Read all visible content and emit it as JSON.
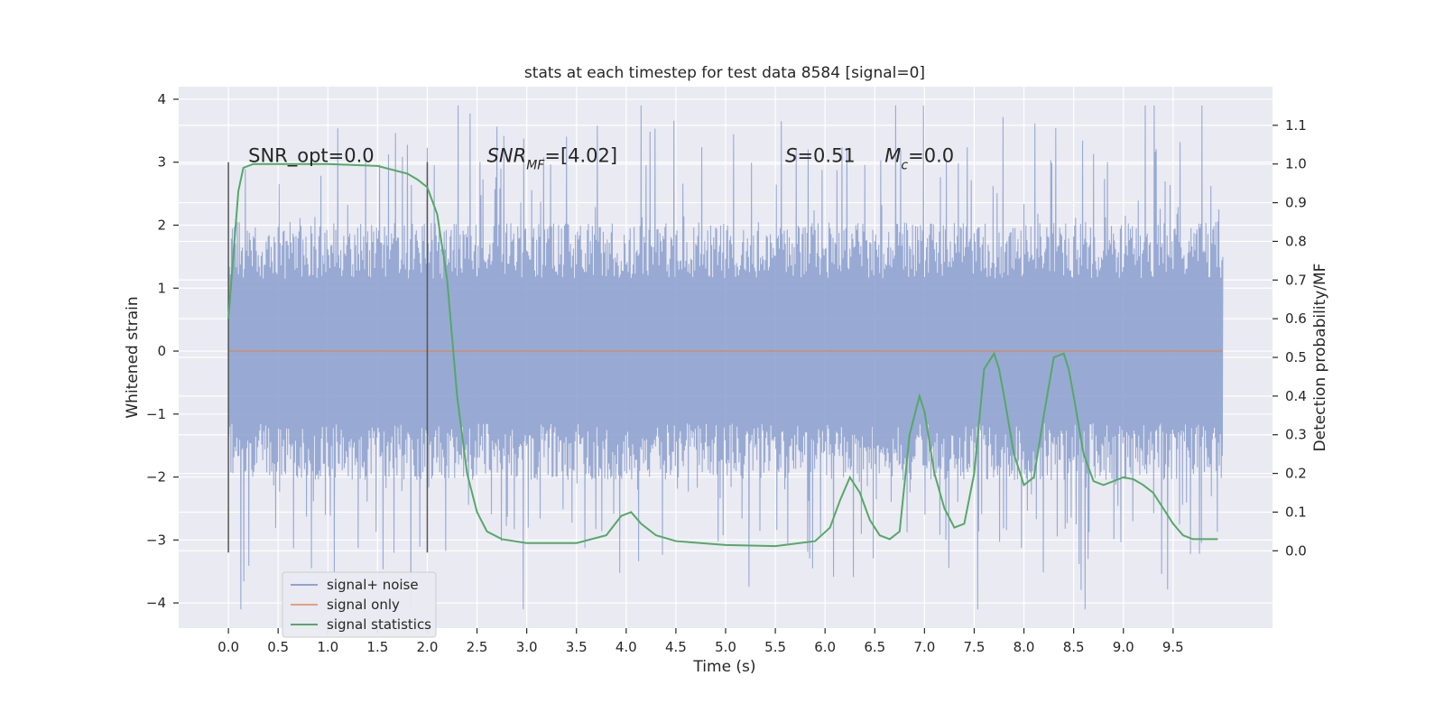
{
  "chart_data": {
    "type": "line",
    "title": "stats at each timestep for test data 8584 [signal=0]",
    "xlabel": "Time (s)",
    "ylabel_left": "Whitened strain",
    "ylabel_right": "Detection probability/MF",
    "xlim": [
      -0.5,
      10.5
    ],
    "ylim_left": [
      -4.4,
      4.2
    ],
    "ylim_right": [
      -0.2,
      1.2
    ],
    "x_ticks": [
      0.0,
      0.5,
      1.0,
      1.5,
      2.0,
      2.5,
      3.0,
      3.5,
      4.0,
      4.5,
      5.0,
      5.5,
      6.0,
      6.5,
      7.0,
      7.5,
      8.0,
      8.5,
      9.0,
      9.5
    ],
    "x_tick_labels": [
      "0.0",
      "0.5",
      "1.0",
      "1.5",
      "2.0",
      "2.5",
      "3.0",
      "3.5",
      "4.0",
      "4.5",
      "5.0",
      "5.5",
      "6.0",
      "6.5",
      "7.0",
      "7.5",
      "8.0",
      "8.5",
      "9.0",
      "9.5"
    ],
    "y_left_ticks": [
      4,
      3,
      2,
      1,
      0,
      -1,
      -2,
      -3,
      -4
    ],
    "y_left_tick_labels": [
      "4",
      "3",
      "2",
      "1",
      "0",
      "−1",
      "−2",
      "−3",
      "−4"
    ],
    "y_right_ticks": [
      1.1,
      1.0,
      0.9,
      0.8,
      0.7,
      0.6,
      0.5,
      0.4,
      0.3,
      0.2,
      0.1,
      0.0
    ],
    "y_right_tick_labels": [
      "1.1",
      "1.0",
      "0.9",
      "0.8",
      "0.7",
      "0.6",
      "0.5",
      "0.4",
      "0.3",
      "0.2",
      "0.1",
      "0.0"
    ],
    "grid": true,
    "legend_position": "lower-left",
    "annotations": [
      {
        "text": "SNR_opt=0.0",
        "x": 0.2,
        "y": 3.0
      },
      {
        "text": "SNR",
        "sub": "MF",
        "suffix": "=[4.02]",
        "x": 2.6,
        "y": 3.0,
        "italic": true
      },
      {
        "text": "S",
        "suffix": "=0.51",
        "x": 5.6,
        "y": 3.0,
        "italic": true
      },
      {
        "text": "M",
        "sub": "c",
        "suffix": "=0.0",
        "x": 6.6,
        "y": 3.0,
        "italic": true
      }
    ],
    "vertical_markers": [
      {
        "x": 0.0,
        "y_range": [
          -3.2,
          3.0
        ]
      },
      {
        "x": 2.0,
        "y_range": [
          -3.2,
          3.0
        ]
      }
    ],
    "series": [
      {
        "name": "signal+ noise",
        "axis": "left",
        "color": "#8fa3cf",
        "kind": "noise",
        "x_range": [
          0.0,
          10.0
        ],
        "sample_rate": 200,
        "core_amplitude": 1.15,
        "peak_amplitude": 3.8
      },
      {
        "name": "signal only",
        "axis": "left",
        "color": "#dd8452",
        "x": [
          0.0,
          10.0
        ],
        "values": [
          0.0,
          0.0
        ]
      },
      {
        "name": "signal statistics",
        "axis": "right",
        "color": "#55a868",
        "x": [
          0.0,
          0.1,
          0.15,
          0.25,
          0.5,
          1.0,
          1.5,
          1.8,
          1.9,
          2.0,
          2.1,
          2.2,
          2.3,
          2.4,
          2.5,
          2.6,
          2.75,
          3.0,
          3.5,
          3.8,
          3.95,
          4.05,
          4.15,
          4.3,
          4.5,
          5.0,
          5.5,
          5.9,
          6.05,
          6.15,
          6.25,
          6.35,
          6.45,
          6.55,
          6.65,
          6.75,
          6.85,
          6.95,
          7.0,
          7.1,
          7.2,
          7.3,
          7.4,
          7.5,
          7.6,
          7.7,
          7.75,
          7.8,
          7.9,
          8.0,
          8.1,
          8.2,
          8.3,
          8.4,
          8.45,
          8.5,
          8.6,
          8.7,
          8.8,
          8.9,
          9.0,
          9.1,
          9.2,
          9.3,
          9.4,
          9.5,
          9.6,
          9.7,
          9.85,
          9.95
        ],
        "values": [
          0.6,
          0.93,
          0.99,
          1.0,
          1.0,
          1.0,
          0.995,
          0.975,
          0.96,
          0.94,
          0.87,
          0.7,
          0.4,
          0.2,
          0.1,
          0.05,
          0.03,
          0.02,
          0.02,
          0.04,
          0.09,
          0.1,
          0.07,
          0.04,
          0.025,
          0.015,
          0.012,
          0.025,
          0.06,
          0.13,
          0.19,
          0.15,
          0.08,
          0.04,
          0.03,
          0.05,
          0.3,
          0.4,
          0.36,
          0.2,
          0.11,
          0.06,
          0.07,
          0.2,
          0.47,
          0.51,
          0.47,
          0.4,
          0.25,
          0.17,
          0.19,
          0.35,
          0.5,
          0.51,
          0.47,
          0.4,
          0.25,
          0.18,
          0.17,
          0.18,
          0.19,
          0.185,
          0.17,
          0.15,
          0.11,
          0.07,
          0.04,
          0.03,
          0.03,
          0.03
        ]
      }
    ]
  }
}
